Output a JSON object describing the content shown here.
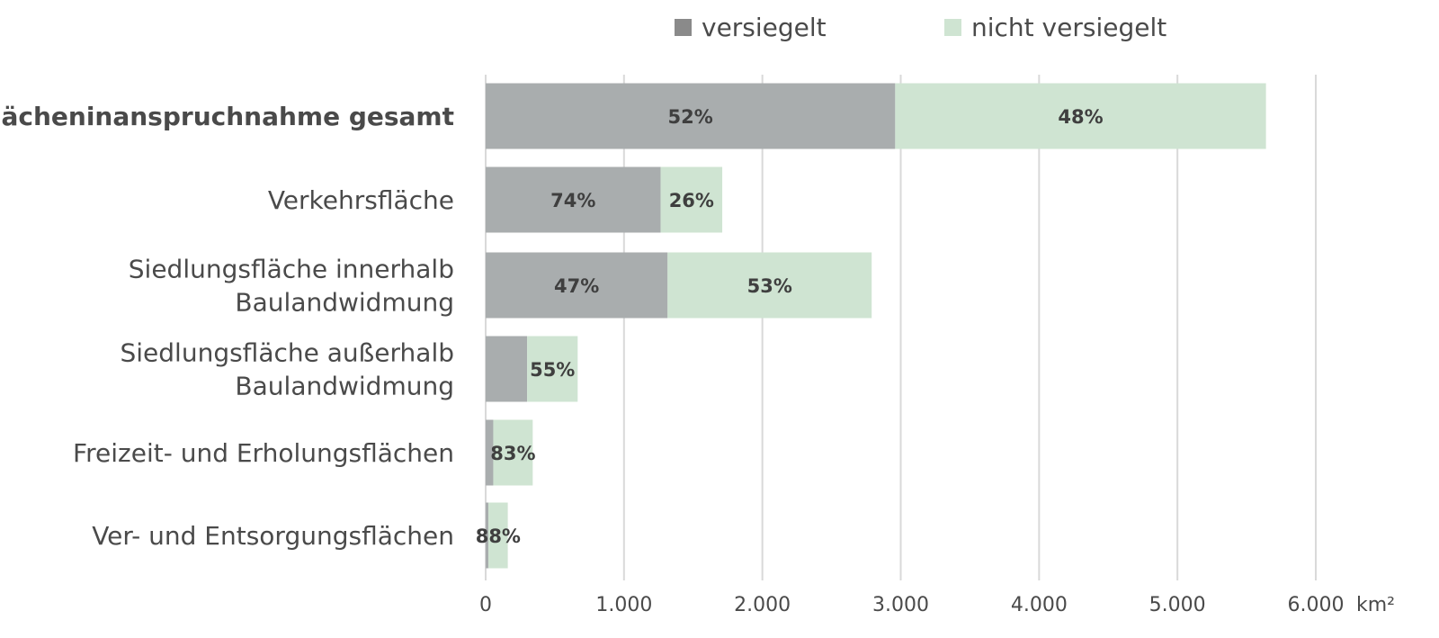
{
  "chart_data": {
    "type": "bar",
    "orientation": "horizontal",
    "stacked": true,
    "categories": [
      [
        "Flächeninanspruchnahme gesamt"
      ],
      [
        "Verkehrsfläche"
      ],
      [
        "Siedlungsfläche innerhalb",
        "Baulandwidmung"
      ],
      [
        "Siedlungsfläche außerhalb",
        "Baulandwidmung"
      ],
      [
        "Freizeit- und Erholungsflächen"
      ],
      [
        "Ver- und Entsorgungsflächen"
      ]
    ],
    "bold_categories": [
      0
    ],
    "series": [
      {
        "name": "versiegelt",
        "color": "#a9adae",
        "values": [
          2960,
          1265,
          1315,
          300,
          55,
          20
        ],
        "labels": [
          "52%",
          "74%",
          "47%",
          "",
          "",
          ""
        ]
      },
      {
        "name": "nicht versiegelt",
        "color": "#cfe4d2",
        "values": [
          2680,
          445,
          1475,
          365,
          285,
          140
        ],
        "labels": [
          "48%",
          "26%",
          "53%",
          "55%",
          "83%",
          "88%"
        ]
      }
    ],
    "xlim": [
      0,
      6000
    ],
    "xticks": [
      0,
      1000,
      2000,
      3000,
      4000,
      5000,
      6000
    ],
    "xtick_labels": [
      "0",
      "1.000",
      "2.000",
      "3.000",
      "4.000",
      "5.000",
      "6.000"
    ],
    "unit": "km²",
    "grid": true,
    "legend": {
      "position": "top",
      "items": [
        {
          "label": "versiegelt",
          "swatch": "#8a8a8a"
        },
        {
          "label": "nicht versiegelt",
          "swatch": "#cfe4d2"
        }
      ]
    }
  }
}
